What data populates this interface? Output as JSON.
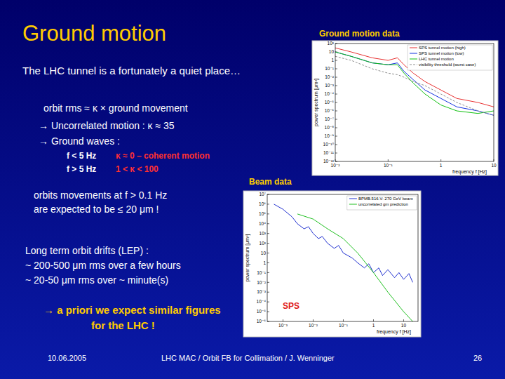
{
  "slide": {
    "title": "Ground motion",
    "data_label": "Ground motion data",
    "beam_label": "Beam data",
    "intro": "The LHC tunnel is a fortunately a quiet place…",
    "formula": "orbit rms ≈ κ × ground movement",
    "bullets": [
      "→ Uncorrelated motion : κ ≈ 35",
      "→ Ground waves :"
    ],
    "wave_rows": [
      [
        "f < 5 Hz",
        "κ ≈ 0 – coherent motion"
      ],
      [
        "f > 5 Hz",
        "1 < κ < 100"
      ]
    ],
    "expectation": [
      "orbits movements at f > 0.1 Hz",
      "are expected to be ≤ 20 μm !"
    ],
    "drifts": [
      "Long term orbit drifts (LEP) :",
      "~ 200-500 μm rms over a few hours",
      "~ 20-50    μm rms over ~ minute(s)"
    ],
    "conclusion": [
      "→ a priori we expect similar figures",
      "for the LHC !"
    ],
    "footer": {
      "date": "10.06.2005",
      "center": "LHC MAC / Orbit FB for Collimation / J. Wenninger",
      "page": 26
    }
  },
  "chart_data": [
    {
      "type": "line",
      "log": true,
      "grid": false,
      "legend": "top-right",
      "x_label": "frequency f [Hz]",
      "y_label": "power spectrum [μm²]",
      "xlim": [
        0.01,
        10
      ],
      "xticks": [
        {
          "value": 0.01,
          "label": "10⁻²"
        },
        {
          "value": 0.1,
          "label": "10⁻¹"
        },
        1,
        10
      ],
      "ylim": [
        1e-12,
        100
      ],
      "yticks": [
        {
          "value": 100,
          "label": "10²"
        },
        10,
        1,
        {
          "value": 0.1,
          "label": "10⁻¹"
        },
        {
          "value": 0.01,
          "label": "10⁻²"
        },
        {
          "value": 0.001,
          "label": "10⁻³"
        },
        {
          "value": 0.0001,
          "label": "10⁻⁴"
        },
        {
          "value": 1e-05,
          "label": "10⁻⁵"
        },
        {
          "value": 1e-06,
          "label": "10⁻⁶"
        },
        {
          "value": 1e-07,
          "label": "10⁻⁷"
        },
        {
          "value": 1e-08,
          "label": "10⁻⁸"
        },
        {
          "value": 1e-09,
          "label": "10⁻⁹"
        },
        {
          "value": 1e-10,
          "label": "10⁻¹⁰"
        },
        {
          "value": 1e-11,
          "label": "10⁻¹¹"
        },
        {
          "value": 1e-12,
          "label": "10⁻¹²"
        }
      ],
      "series": [
        {
          "name": "SPS tunnel motion (high)",
          "color": "#e83030",
          "line_style": "solid",
          "x": [
            0.01,
            0.02,
            0.05,
            0.1,
            0.15,
            0.2,
            0.3,
            0.5,
            1,
            2,
            5,
            10
          ],
          "values": [
            30,
            10,
            2,
            1,
            2,
            0.3,
            0.03,
            0.003,
            0.0003,
            3e-05,
            1e-05,
            3e-06
          ]
        },
        {
          "name": "SPS tunnel motion (low)",
          "color": "#1030e0",
          "line_style": "solid",
          "x": [
            0.01,
            0.02,
            0.05,
            0.1,
            0.15,
            0.2,
            0.3,
            0.5,
            1,
            2,
            5,
            10
          ],
          "values": [
            10,
            3,
            0.5,
            0.3,
            0.5,
            0.05,
            0.005,
            0.0003,
            3e-05,
            3e-06,
            1e-06,
            3e-07
          ]
        },
        {
          "name": "LHC tunnel motion",
          "color": "#10c010",
          "line_style": "solid",
          "x": [
            0.01,
            0.02,
            0.05,
            0.1,
            0.15,
            0.2,
            0.3,
            0.5,
            1,
            2,
            5,
            10
          ],
          "values": [
            10,
            3,
            0.5,
            0.3,
            0.3,
            0.03,
            0.002,
            0.0001,
            5e-06,
            1e-06,
            5e-07,
            1e-06
          ]
        },
        {
          "name": "visibility threshold (worst case)",
          "color": "#909090",
          "line_style": "dashed",
          "x": [
            0.01,
            0.02,
            0.05,
            0.1,
            0.15,
            0.2,
            0.3,
            0.5,
            1,
            2,
            5,
            10
          ],
          "values": [
            3,
            1,
            0.1,
            0.03,
            0.02,
            0.01,
            0.003,
            0.001,
            0.0001,
            1e-05,
            1e-06,
            3e-07
          ]
        }
      ]
    },
    {
      "type": "line",
      "log": true,
      "grid": false,
      "legend": "top-right",
      "x_label": "frequency f [Hz]",
      "y_label": "power spectrum [μm²]",
      "annotation": "SPS",
      "xlim": [
        0.0003,
        30
      ],
      "xticks": [
        {
          "value": 0.001,
          "label": "10⁻³"
        },
        {
          "value": 0.01,
          "label": "10⁻²"
        },
        {
          "value": 0.1,
          "label": "10⁻¹"
        },
        1,
        10
      ],
      "ylim": [
        1e-06,
        10000000
      ],
      "yticks": [
        {
          "value": 10000000,
          "label": "10⁷"
        },
        {
          "value": 1000000,
          "label": "10⁶"
        },
        {
          "value": 100000,
          "label": "10⁵"
        },
        {
          "value": 10000,
          "label": "10⁴"
        },
        {
          "value": 1000,
          "label": "10³"
        },
        {
          "value": 100,
          "label": "10²"
        },
        10,
        1,
        {
          "value": 0.1,
          "label": "10⁻¹"
        },
        {
          "value": 0.01,
          "label": "10⁻²"
        },
        {
          "value": 0.001,
          "label": "10⁻³"
        },
        {
          "value": 0.0001,
          "label": "10⁻⁴"
        },
        {
          "value": 1e-05,
          "label": "10⁻⁵"
        },
        {
          "value": 1e-06,
          "label": "10⁻⁶"
        }
      ],
      "series": [
        {
          "name": "BPMB.516.V: 270 GeV beam",
          "color": "#2030d0",
          "line_style": "solid",
          "x": [
            0.0005,
            0.001,
            0.002,
            0.003,
            0.005,
            0.007,
            0.01,
            0.015,
            0.02,
            0.03,
            0.05,
            0.07,
            0.1,
            0.15,
            0.2,
            0.3,
            0.5,
            0.7,
            1,
            1.5,
            2,
            3,
            5,
            7,
            10,
            15,
            20
          ],
          "values": [
            1000000,
            300000,
            50000,
            10000,
            3000,
            5000,
            1000,
            300,
            500,
            100,
            30,
            60,
            10,
            5,
            3,
            1,
            0.3,
            0.8,
            0.1,
            0.3,
            0.05,
            0.2,
            0.03,
            0.1,
            0.02,
            0.08,
            0.01
          ]
        },
        {
          "name": "uncorrelated gm prediction",
          "color": "#20c020",
          "line_style": "solid",
          "x": [
            0.003,
            0.01,
            0.03,
            0.1,
            0.3,
            1,
            3,
            10,
            20
          ],
          "values": [
            100000,
            30000,
            3000,
            300,
            10,
            0.1,
            0.001,
            1e-05,
            1e-06
          ]
        }
      ]
    }
  ]
}
